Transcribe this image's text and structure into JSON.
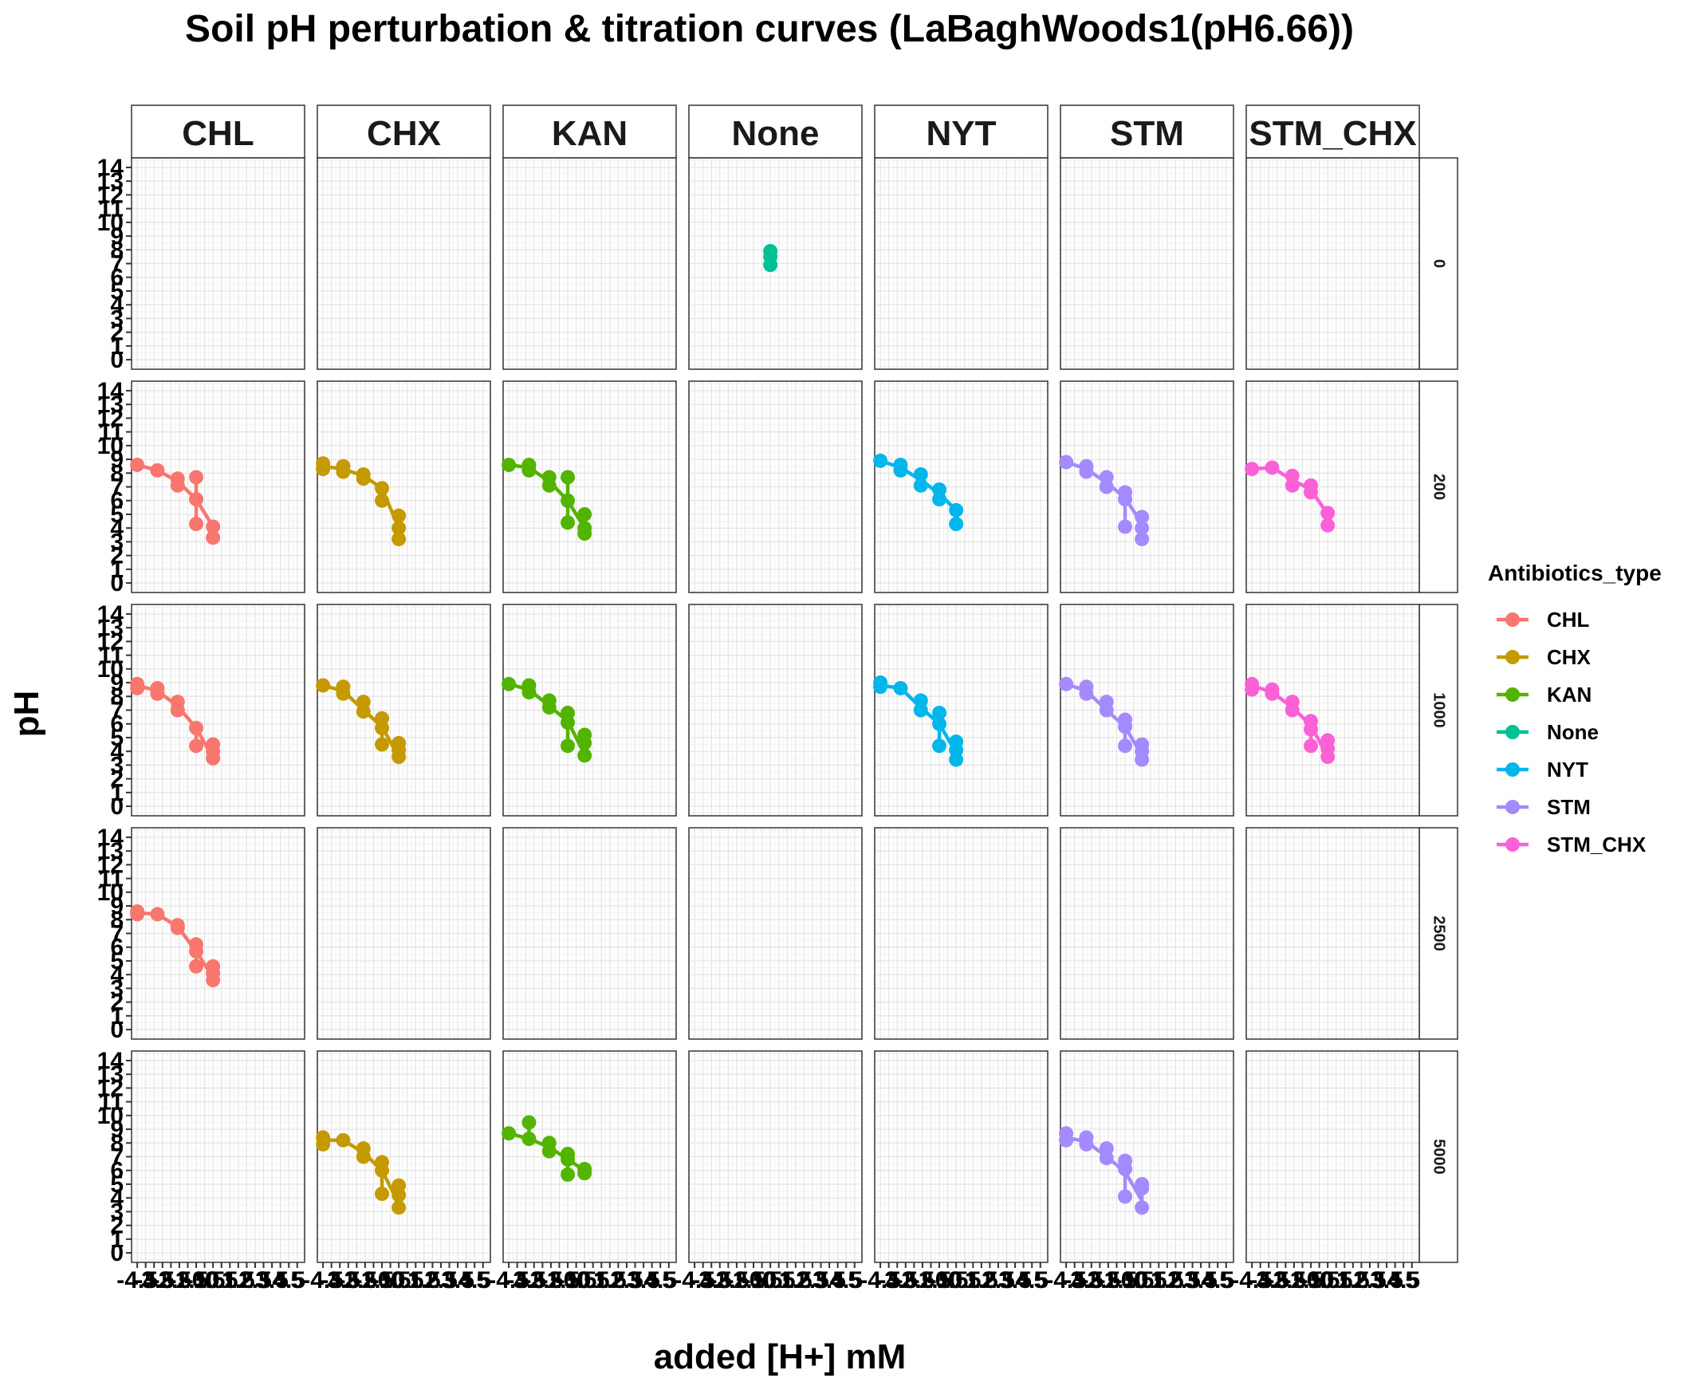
{
  "chart_data": {
    "type": "line",
    "title": "Soil pH perturbation & titration curves (LaBaghWoods1(pH6.66))",
    "xlabel": "added [H+] mM",
    "ylabel": "pH",
    "ylim": [
      0,
      14
    ],
    "yticks": [
      0,
      1,
      2,
      3,
      4,
      5,
      6,
      7,
      8,
      9,
      10,
      11,
      12,
      13,
      14
    ],
    "xticks": [
      -4.5,
      -4,
      -3.5,
      -3,
      -2.5,
      -2,
      -1.5,
      -1,
      -0.5,
      0,
      0.5,
      1,
      1.5,
      2,
      2.5,
      3,
      3.5,
      4,
      4.5,
      5
    ],
    "xlim": [
      -4.6,
      5.2
    ],
    "grid": true,
    "legend": {
      "title": "Antibiotics_type",
      "position": "right",
      "entries": [
        {
          "name": "CHL",
          "color": "#F8766D"
        },
        {
          "name": "CHX",
          "color": "#C49A00"
        },
        {
          "name": "KAN",
          "color": "#53B400"
        },
        {
          "name": "None",
          "color": "#00C094"
        },
        {
          "name": "NYT",
          "color": "#00B6EB"
        },
        {
          "name": "STM",
          "color": "#A58AFF"
        },
        {
          "name": "STM_CHX",
          "color": "#FB61D7"
        }
      ]
    },
    "facet_cols": [
      "CHL",
      "CHX",
      "KAN",
      "None",
      "NYT",
      "STM",
      "STM_CHX"
    ],
    "facet_rows": [
      "0",
      "200",
      "1000",
      "2500",
      "5000"
    ],
    "panels": [
      {
        "col": "None",
        "row": "0",
        "points": [
          [
            0,
            7.5
          ],
          [
            0,
            7.9
          ],
          [
            0,
            6.9
          ]
        ],
        "line": []
      },
      {
        "col": "CHL",
        "row": "200",
        "points": [
          [
            -4.5,
            8.6
          ],
          [
            -3.3,
            8.2
          ],
          [
            -2.1,
            7.6
          ],
          [
            -2.1,
            7.1
          ],
          [
            -1,
            7.7
          ],
          [
            -1,
            6.1
          ],
          [
            -1,
            4.3
          ],
          [
            0,
            4.1
          ],
          [
            0,
            3.3
          ]
        ],
        "line": [
          [
            -4.5,
            8.6
          ],
          [
            -3.3,
            8.2
          ],
          [
            -2.1,
            7.4
          ],
          [
            -1,
            6.1
          ],
          [
            0,
            4.1
          ]
        ]
      },
      {
        "col": "CHX",
        "row": "200",
        "points": [
          [
            -4.5,
            8.7
          ],
          [
            -4.5,
            8.3
          ],
          [
            -3.3,
            8.5
          ],
          [
            -3.3,
            8.1
          ],
          [
            -2.1,
            7.9
          ],
          [
            -2.1,
            7.6
          ],
          [
            -1,
            6.9
          ],
          [
            -1,
            6.0
          ],
          [
            0,
            4.9
          ],
          [
            0,
            4.0
          ],
          [
            0,
            3.2
          ]
        ],
        "line": [
          [
            -4.5,
            8.5
          ],
          [
            -3.3,
            8.3
          ],
          [
            -2.1,
            7.8
          ],
          [
            -1,
            6.9
          ],
          [
            0,
            4.0
          ]
        ]
      },
      {
        "col": "KAN",
        "row": "200",
        "points": [
          [
            -4.5,
            8.6
          ],
          [
            -3.3,
            8.6
          ],
          [
            -3.3,
            8.2
          ],
          [
            -2.1,
            7.7
          ],
          [
            -2.1,
            7.1
          ],
          [
            -1,
            7.7
          ],
          [
            -1,
            6.0
          ],
          [
            -1,
            4.4
          ],
          [
            0,
            5.0
          ],
          [
            0,
            4.0
          ],
          [
            0,
            3.6
          ]
        ],
        "line": [
          [
            -4.5,
            8.6
          ],
          [
            -3.3,
            8.4
          ],
          [
            -2.1,
            7.4
          ],
          [
            -1,
            6.0
          ],
          [
            0,
            4.0
          ]
        ]
      },
      {
        "col": "NYT",
        "row": "200",
        "points": [
          [
            -4.5,
            8.9
          ],
          [
            -3.3,
            8.6
          ],
          [
            -3.3,
            8.2
          ],
          [
            -2.1,
            7.9
          ],
          [
            -2.1,
            7.1
          ],
          [
            -1,
            6.8
          ],
          [
            -1,
            6.1
          ],
          [
            0,
            5.3
          ],
          [
            0,
            4.3
          ]
        ],
        "line": [
          [
            -4.5,
            8.9
          ],
          [
            -3.3,
            8.4
          ],
          [
            -2.1,
            7.5
          ],
          [
            -1,
            6.5
          ],
          [
            0,
            5.3
          ]
        ]
      },
      {
        "col": "STM",
        "row": "200",
        "points": [
          [
            -4.5,
            8.8
          ],
          [
            -3.3,
            8.5
          ],
          [
            -3.3,
            8.1
          ],
          [
            -2.1,
            7.7
          ],
          [
            -2.1,
            7.0
          ],
          [
            -1,
            6.6
          ],
          [
            -1,
            6.1
          ],
          [
            -1,
            4.1
          ],
          [
            0,
            4.8
          ],
          [
            0,
            4.0
          ],
          [
            0,
            3.2
          ]
        ],
        "line": [
          [
            -4.5,
            8.8
          ],
          [
            -3.3,
            8.3
          ],
          [
            -2.1,
            7.3
          ],
          [
            -1,
            6.2
          ],
          [
            0,
            4.3
          ]
        ]
      },
      {
        "col": "STM_CHX",
        "row": "200",
        "points": [
          [
            -4.5,
            8.3
          ],
          [
            -3.3,
            8.4
          ],
          [
            -2.1,
            7.8
          ],
          [
            -2.1,
            7.1
          ],
          [
            -1,
            7.1
          ],
          [
            -1,
            6.6
          ],
          [
            0,
            5.1
          ],
          [
            0,
            4.2
          ]
        ],
        "line": [
          [
            -4.5,
            8.3
          ],
          [
            -3.3,
            8.4
          ],
          [
            -2.1,
            7.5
          ],
          [
            -1,
            6.8
          ],
          [
            0,
            5.0
          ]
        ]
      },
      {
        "col": "CHL",
        "row": "1000",
        "points": [
          [
            -4.5,
            8.9
          ],
          [
            -4.5,
            8.6
          ],
          [
            -3.3,
            8.6
          ],
          [
            -3.3,
            8.2
          ],
          [
            -2.1,
            7.6
          ],
          [
            -2.1,
            7.0
          ],
          [
            -1,
            5.7
          ],
          [
            -1,
            4.4
          ],
          [
            0,
            4.5
          ],
          [
            0,
            4.0
          ],
          [
            0,
            3.5
          ]
        ],
        "line": [
          [
            -4.5,
            8.8
          ],
          [
            -3.3,
            8.4
          ],
          [
            -2.1,
            7.3
          ],
          [
            -1,
            5.7
          ],
          [
            0,
            3.5
          ]
        ]
      },
      {
        "col": "CHX",
        "row": "1000",
        "points": [
          [
            -4.5,
            8.8
          ],
          [
            -3.3,
            8.7
          ],
          [
            -3.3,
            8.2
          ],
          [
            -2.1,
            7.6
          ],
          [
            -2.1,
            6.9
          ],
          [
            -1,
            6.4
          ],
          [
            -1,
            5.7
          ],
          [
            -1,
            4.5
          ],
          [
            0,
            4.6
          ],
          [
            0,
            4.1
          ],
          [
            0,
            3.6
          ]
        ],
        "line": [
          [
            -4.5,
            8.8
          ],
          [
            -3.3,
            8.4
          ],
          [
            -2.1,
            7.0
          ],
          [
            -1,
            5.8
          ],
          [
            0,
            3.6
          ]
        ]
      },
      {
        "col": "KAN",
        "row": "1000",
        "points": [
          [
            -4.5,
            8.9
          ],
          [
            -3.3,
            8.8
          ],
          [
            -3.3,
            8.3
          ],
          [
            -2.1,
            7.7
          ],
          [
            -2.1,
            7.2
          ],
          [
            -1,
            6.8
          ],
          [
            -1,
            6.1
          ],
          [
            -1,
            4.4
          ],
          [
            0,
            5.2
          ],
          [
            0,
            4.6
          ],
          [
            0,
            3.7
          ]
        ],
        "line": [
          [
            -4.5,
            8.9
          ],
          [
            -3.3,
            8.5
          ],
          [
            -2.1,
            7.3
          ],
          [
            -1,
            6.2
          ],
          [
            0,
            3.8
          ]
        ]
      },
      {
        "col": "NYT",
        "row": "1000",
        "points": [
          [
            -4.5,
            9.0
          ],
          [
            -4.5,
            8.7
          ],
          [
            -3.3,
            8.6
          ],
          [
            -2.1,
            7.7
          ],
          [
            -2.1,
            7.0
          ],
          [
            -1,
            6.8
          ],
          [
            -1,
            6.0
          ],
          [
            -1,
            4.4
          ],
          [
            0,
            4.7
          ],
          [
            0,
            4.1
          ],
          [
            0,
            3.4
          ]
        ],
        "line": [
          [
            -4.5,
            8.8
          ],
          [
            -3.3,
            8.6
          ],
          [
            -2.1,
            7.2
          ],
          [
            -1,
            6.0
          ],
          [
            0,
            3.9
          ]
        ]
      },
      {
        "col": "STM",
        "row": "1000",
        "points": [
          [
            -4.5,
            8.9
          ],
          [
            -3.3,
            8.7
          ],
          [
            -3.3,
            8.2
          ],
          [
            -2.1,
            7.6
          ],
          [
            -2.1,
            7.0
          ],
          [
            -1,
            6.3
          ],
          [
            -1,
            5.8
          ],
          [
            -1,
            4.4
          ],
          [
            0,
            4.5
          ],
          [
            0,
            4.0
          ],
          [
            0,
            3.4
          ]
        ],
        "line": [
          [
            -4.5,
            8.9
          ],
          [
            -3.3,
            8.4
          ],
          [
            -2.1,
            7.0
          ],
          [
            -1,
            5.8
          ],
          [
            0,
            3.7
          ]
        ]
      },
      {
        "col": "STM_CHX",
        "row": "1000",
        "points": [
          [
            -4.5,
            8.9
          ],
          [
            -4.5,
            8.5
          ],
          [
            -3.3,
            8.5
          ],
          [
            -3.3,
            8.2
          ],
          [
            -2.1,
            7.6
          ],
          [
            -2.1,
            7.0
          ],
          [
            -1,
            6.2
          ],
          [
            -1,
            5.6
          ],
          [
            -1,
            4.4
          ],
          [
            0,
            4.8
          ],
          [
            0,
            4.2
          ],
          [
            0,
            3.6
          ]
        ],
        "line": [
          [
            -4.5,
            8.8
          ],
          [
            -3.3,
            8.3
          ],
          [
            -2.1,
            7.2
          ],
          [
            -1,
            5.9
          ],
          [
            0,
            3.6
          ]
        ]
      },
      {
        "col": "CHL",
        "row": "2500",
        "points": [
          [
            -4.5,
            8.6
          ],
          [
            -4.5,
            8.4
          ],
          [
            -3.3,
            8.4
          ],
          [
            -2.1,
            7.6
          ],
          [
            -2.1,
            7.4
          ],
          [
            -1,
            6.2
          ],
          [
            -1,
            5.7
          ],
          [
            -1,
            4.6
          ],
          [
            0,
            4.6
          ],
          [
            0,
            4.1
          ],
          [
            0,
            3.6
          ]
        ],
        "line": [
          [
            -4.5,
            8.5
          ],
          [
            -3.3,
            8.4
          ],
          [
            -2.1,
            7.5
          ],
          [
            -1,
            5.7
          ],
          [
            0,
            3.8
          ]
        ]
      },
      {
        "col": "CHX",
        "row": "5000",
        "points": [
          [
            -4.5,
            8.4
          ],
          [
            -4.5,
            7.9
          ],
          [
            -3.3,
            8.2
          ],
          [
            -2.1,
            7.6
          ],
          [
            -2.1,
            7.0
          ],
          [
            -1,
            6.6
          ],
          [
            -1,
            6.0
          ],
          [
            -1,
            4.3
          ],
          [
            0,
            4.9
          ],
          [
            0,
            4.2
          ],
          [
            0,
            3.3
          ]
        ],
        "line": [
          [
            -4.5,
            8.2
          ],
          [
            -3.3,
            8.2
          ],
          [
            -2.1,
            7.3
          ],
          [
            -1,
            6.0
          ],
          [
            0,
            3.6
          ]
        ]
      },
      {
        "col": "KAN",
        "row": "5000",
        "points": [
          [
            -4.5,
            8.7
          ],
          [
            -3.3,
            9.5
          ],
          [
            -3.3,
            8.3
          ],
          [
            -2.1,
            8.0
          ],
          [
            -2.1,
            7.4
          ],
          [
            -1,
            7.2
          ],
          [
            -1,
            6.8
          ],
          [
            -1,
            5.7
          ],
          [
            0,
            6.1
          ],
          [
            0,
            5.8
          ]
        ],
        "line": [
          [
            -4.5,
            8.7
          ],
          [
            -3.3,
            8.3
          ],
          [
            -2.1,
            7.7
          ],
          [
            -1,
            6.8
          ],
          [
            0,
            6.0
          ]
        ]
      },
      {
        "col": "STM",
        "row": "5000",
        "points": [
          [
            -4.5,
            8.7
          ],
          [
            -4.5,
            8.2
          ],
          [
            -3.3,
            8.4
          ],
          [
            -3.3,
            7.9
          ],
          [
            -2.1,
            7.6
          ],
          [
            -2.1,
            6.9
          ],
          [
            -1,
            6.7
          ],
          [
            -1,
            6.1
          ],
          [
            -1,
            4.1
          ],
          [
            0,
            5.0
          ],
          [
            0,
            4.7
          ],
          [
            0,
            3.3
          ]
        ],
        "line": [
          [
            -4.5,
            8.4
          ],
          [
            -3.3,
            8.1
          ],
          [
            -2.1,
            7.0
          ],
          [
            -1,
            5.9
          ],
          [
            0,
            3.8
          ]
        ]
      }
    ]
  }
}
